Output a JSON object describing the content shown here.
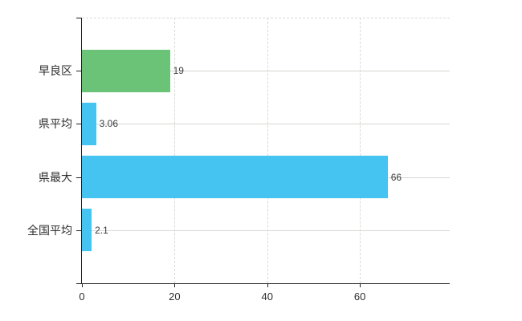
{
  "chart_data": {
    "type": "bar",
    "orientation": "horizontal",
    "title": "",
    "xlabel": "",
    "ylabel": "",
    "categories": [
      "早良区",
      "県平均",
      "県最大",
      "全国平均"
    ],
    "values": [
      19,
      3.06,
      66,
      2.1
    ],
    "value_labels": [
      "19",
      "3.06",
      "66",
      "2.1"
    ],
    "bar_colors": [
      "#6ac377",
      "#45c4f2",
      "#45c4f2",
      "#45c4f2"
    ],
    "x_tick_values": [
      0,
      20,
      40,
      60
    ],
    "x_tick_labels": [
      "0",
      "20",
      "40",
      "60"
    ],
    "xlim": [
      0,
      79.4
    ],
    "legend_position": "none",
    "grid": {
      "horizontal": "solid-per-category-row",
      "vertical": "dashed-at-x-ticks",
      "top_border": "dashed"
    },
    "colors": {
      "axis": "#222222",
      "grid_solid": "#d5d8d2",
      "grid_dashed": "#d9d9d6",
      "category_text": "#2e2e2e",
      "value_text": "#3c3c3c",
      "background": "#ffffff"
    }
  }
}
